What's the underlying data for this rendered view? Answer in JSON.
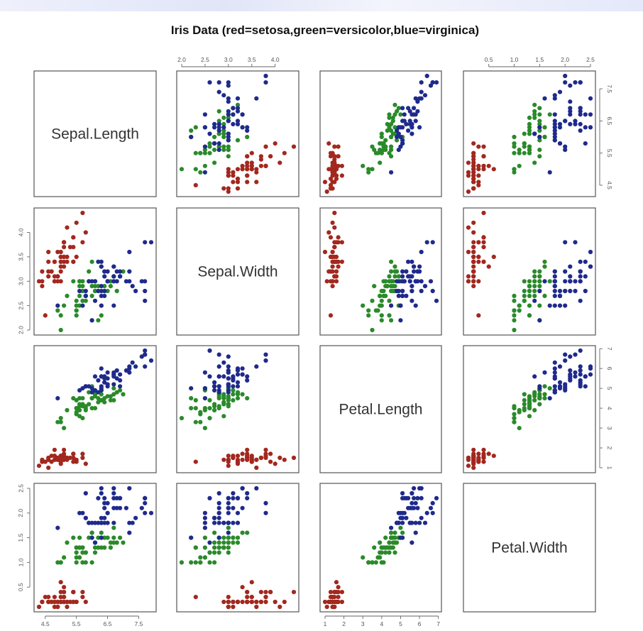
{
  "chart_data": {
    "type": "scatter",
    "title": "Iris Data (red=setosa,green=versicolor,blue=virginica)",
    "variables": [
      "Sepal.Length",
      "Sepal.Width",
      "Petal.Length",
      "Petal.Width"
    ],
    "ranges": {
      "Sepal.Length": [
        4.3,
        7.9
      ],
      "Sepal.Width": [
        2.0,
        4.4
      ],
      "Petal.Length": [
        1.0,
        6.9
      ],
      "Petal.Width": [
        0.1,
        2.5
      ]
    },
    "ticks": {
      "Sepal.Length": [
        "4.5",
        "5.5",
        "6.5",
        "7.5"
      ],
      "Sepal.Width": [
        "2.0",
        "2.5",
        "3.0",
        "3.5",
        "4.0"
      ],
      "Petal.Length": [
        "1",
        "2",
        "3",
        "4",
        "5",
        "6",
        "7"
      ],
      "Petal.Width": [
        "0.5",
        "1.0",
        "1.5",
        "2.0",
        "2.5"
      ]
    },
    "grid": false,
    "legend": "none",
    "series": [
      {
        "species": "setosa",
        "color": "#a2281e",
        "points": [
          [
            5.1,
            3.5,
            1.4,
            0.2
          ],
          [
            4.9,
            3.0,
            1.4,
            0.2
          ],
          [
            4.7,
            3.2,
            1.3,
            0.2
          ],
          [
            4.6,
            3.1,
            1.5,
            0.2
          ],
          [
            5.0,
            3.6,
            1.4,
            0.2
          ],
          [
            5.4,
            3.9,
            1.7,
            0.4
          ],
          [
            4.6,
            3.4,
            1.4,
            0.3
          ],
          [
            5.0,
            3.4,
            1.5,
            0.2
          ],
          [
            4.4,
            2.9,
            1.4,
            0.2
          ],
          [
            4.9,
            3.1,
            1.5,
            0.1
          ],
          [
            5.4,
            3.7,
            1.5,
            0.2
          ],
          [
            4.8,
            3.4,
            1.6,
            0.2
          ],
          [
            4.8,
            3.0,
            1.4,
            0.1
          ],
          [
            4.3,
            3.0,
            1.1,
            0.1
          ],
          [
            5.8,
            4.0,
            1.2,
            0.2
          ],
          [
            5.7,
            4.4,
            1.5,
            0.4
          ],
          [
            5.4,
            3.9,
            1.3,
            0.4
          ],
          [
            5.1,
            3.5,
            1.4,
            0.3
          ],
          [
            5.7,
            3.8,
            1.7,
            0.3
          ],
          [
            5.1,
            3.8,
            1.5,
            0.3
          ],
          [
            5.4,
            3.4,
            1.7,
            0.2
          ],
          [
            5.1,
            3.7,
            1.5,
            0.4
          ],
          [
            4.6,
            3.6,
            1.0,
            0.2
          ],
          [
            5.1,
            3.3,
            1.7,
            0.5
          ],
          [
            4.8,
            3.4,
            1.9,
            0.2
          ],
          [
            5.0,
            3.0,
            1.6,
            0.2
          ],
          [
            5.0,
            3.4,
            1.6,
            0.4
          ],
          [
            5.2,
            3.5,
            1.5,
            0.2
          ],
          [
            5.2,
            3.4,
            1.4,
            0.2
          ],
          [
            4.7,
            3.2,
            1.6,
            0.2
          ],
          [
            4.8,
            3.1,
            1.6,
            0.2
          ],
          [
            5.4,
            3.4,
            1.5,
            0.4
          ],
          [
            5.2,
            4.1,
            1.5,
            0.1
          ],
          [
            5.5,
            4.2,
            1.4,
            0.2
          ],
          [
            4.9,
            3.1,
            1.5,
            0.2
          ],
          [
            5.0,
            3.2,
            1.2,
            0.2
          ],
          [
            5.5,
            3.5,
            1.3,
            0.2
          ],
          [
            4.9,
            3.6,
            1.4,
            0.1
          ],
          [
            4.4,
            3.0,
            1.3,
            0.2
          ],
          [
            5.1,
            3.4,
            1.5,
            0.2
          ],
          [
            5.0,
            3.5,
            1.3,
            0.3
          ],
          [
            4.5,
            2.3,
            1.3,
            0.3
          ],
          [
            4.4,
            3.2,
            1.3,
            0.2
          ],
          [
            5.0,
            3.5,
            1.6,
            0.6
          ],
          [
            5.1,
            3.8,
            1.9,
            0.4
          ],
          [
            4.8,
            3.0,
            1.4,
            0.3
          ],
          [
            5.1,
            3.8,
            1.6,
            0.2
          ],
          [
            4.6,
            3.2,
            1.4,
            0.2
          ],
          [
            5.3,
            3.7,
            1.5,
            0.2
          ],
          [
            5.0,
            3.3,
            1.4,
            0.2
          ]
        ]
      },
      {
        "species": "versicolor",
        "color": "#2a8a2a",
        "points": [
          [
            7.0,
            3.2,
            4.7,
            1.4
          ],
          [
            6.4,
            3.2,
            4.5,
            1.5
          ],
          [
            6.9,
            3.1,
            4.9,
            1.5
          ],
          [
            5.5,
            2.3,
            4.0,
            1.3
          ],
          [
            6.5,
            2.8,
            4.6,
            1.5
          ],
          [
            5.7,
            2.8,
            4.5,
            1.3
          ],
          [
            6.3,
            3.3,
            4.7,
            1.6
          ],
          [
            4.9,
            2.4,
            3.3,
            1.0
          ],
          [
            6.6,
            2.9,
            4.6,
            1.3
          ],
          [
            5.2,
            2.7,
            3.9,
            1.4
          ],
          [
            5.0,
            2.0,
            3.5,
            1.0
          ],
          [
            5.9,
            3.0,
            4.2,
            1.5
          ],
          [
            6.0,
            2.2,
            4.0,
            1.0
          ],
          [
            6.1,
            2.9,
            4.7,
            1.4
          ],
          [
            5.6,
            2.9,
            3.6,
            1.3
          ],
          [
            6.7,
            3.1,
            4.4,
            1.4
          ],
          [
            5.6,
            3.0,
            4.5,
            1.5
          ],
          [
            5.8,
            2.7,
            4.1,
            1.0
          ],
          [
            6.2,
            2.2,
            4.5,
            1.5
          ],
          [
            5.6,
            2.5,
            3.9,
            1.1
          ],
          [
            5.9,
            3.2,
            4.8,
            1.8
          ],
          [
            6.1,
            2.8,
            4.0,
            1.3
          ],
          [
            6.3,
            2.5,
            4.9,
            1.5
          ],
          [
            6.1,
            2.8,
            4.7,
            1.2
          ],
          [
            6.4,
            2.9,
            4.3,
            1.3
          ],
          [
            6.6,
            3.0,
            4.4,
            1.4
          ],
          [
            6.8,
            2.8,
            4.8,
            1.4
          ],
          [
            6.7,
            3.0,
            5.0,
            1.7
          ],
          [
            6.0,
            2.9,
            4.5,
            1.5
          ],
          [
            5.7,
            2.6,
            3.5,
            1.0
          ],
          [
            5.5,
            2.4,
            3.8,
            1.1
          ],
          [
            5.5,
            2.4,
            3.7,
            1.0
          ],
          [
            5.8,
            2.7,
            3.9,
            1.2
          ],
          [
            6.0,
            2.7,
            5.1,
            1.6
          ],
          [
            5.4,
            3.0,
            4.5,
            1.5
          ],
          [
            6.0,
            3.4,
            4.5,
            1.6
          ],
          [
            6.7,
            3.1,
            4.7,
            1.5
          ],
          [
            6.3,
            2.3,
            4.4,
            1.3
          ],
          [
            5.6,
            3.0,
            4.1,
            1.3
          ],
          [
            5.5,
            2.5,
            4.0,
            1.3
          ],
          [
            5.5,
            2.6,
            4.4,
            1.2
          ],
          [
            6.1,
            3.0,
            4.6,
            1.4
          ],
          [
            5.8,
            2.6,
            4.0,
            1.2
          ],
          [
            5.0,
            2.3,
            3.3,
            1.0
          ],
          [
            5.6,
            2.7,
            4.2,
            1.3
          ],
          [
            5.7,
            3.0,
            4.2,
            1.2
          ],
          [
            5.7,
            2.9,
            4.2,
            1.3
          ],
          [
            6.2,
            2.9,
            4.3,
            1.3
          ],
          [
            5.1,
            2.5,
            3.0,
            1.1
          ],
          [
            5.7,
            2.8,
            4.1,
            1.3
          ]
        ]
      },
      {
        "species": "virginica",
        "color": "#1f2a8c",
        "points": [
          [
            6.3,
            3.3,
            6.0,
            2.5
          ],
          [
            5.8,
            2.7,
            5.1,
            1.9
          ],
          [
            7.1,
            3.0,
            5.9,
            2.1
          ],
          [
            6.3,
            2.9,
            5.6,
            1.8
          ],
          [
            6.5,
            3.0,
            5.8,
            2.2
          ],
          [
            7.6,
            3.0,
            6.6,
            2.1
          ],
          [
            4.9,
            2.5,
            4.5,
            1.7
          ],
          [
            7.3,
            2.9,
            6.3,
            1.8
          ],
          [
            6.7,
            2.5,
            5.8,
            1.8
          ],
          [
            7.2,
            3.6,
            6.1,
            2.5
          ],
          [
            6.5,
            3.2,
            5.1,
            2.0
          ],
          [
            6.4,
            2.7,
            5.3,
            1.9
          ],
          [
            6.8,
            3.0,
            5.5,
            2.1
          ],
          [
            5.7,
            2.5,
            5.0,
            2.0
          ],
          [
            5.8,
            2.8,
            5.1,
            2.4
          ],
          [
            6.4,
            3.2,
            5.3,
            2.3
          ],
          [
            6.5,
            3.0,
            5.5,
            1.8
          ],
          [
            7.7,
            3.8,
            6.7,
            2.2
          ],
          [
            7.7,
            2.6,
            6.9,
            2.3
          ],
          [
            6.0,
            2.2,
            5.0,
            1.5
          ],
          [
            6.9,
            3.2,
            5.7,
            2.3
          ],
          [
            5.6,
            2.8,
            4.9,
            2.0
          ],
          [
            7.7,
            2.8,
            6.7,
            2.0
          ],
          [
            6.3,
            2.7,
            4.9,
            1.8
          ],
          [
            6.7,
            3.3,
            5.7,
            2.1
          ],
          [
            7.2,
            3.2,
            6.0,
            1.8
          ],
          [
            6.2,
            2.8,
            4.8,
            1.8
          ],
          [
            6.1,
            3.0,
            4.9,
            1.8
          ],
          [
            6.4,
            2.8,
            5.6,
            2.1
          ],
          [
            7.2,
            3.0,
            5.8,
            1.6
          ],
          [
            7.4,
            2.8,
            6.1,
            1.9
          ],
          [
            7.9,
            3.8,
            6.4,
            2.0
          ],
          [
            6.4,
            2.8,
            5.6,
            2.2
          ],
          [
            6.3,
            2.8,
            5.1,
            1.5
          ],
          [
            6.1,
            2.6,
            5.6,
            1.4
          ],
          [
            7.7,
            3.0,
            6.1,
            2.3
          ],
          [
            6.3,
            3.4,
            5.6,
            2.4
          ],
          [
            6.4,
            3.1,
            5.5,
            1.8
          ],
          [
            6.0,
            3.0,
            4.8,
            1.8
          ],
          [
            6.9,
            3.1,
            5.4,
            2.1
          ],
          [
            6.7,
            3.1,
            5.6,
            2.4
          ],
          [
            6.9,
            3.1,
            5.1,
            2.3
          ],
          [
            5.8,
            2.7,
            5.1,
            1.9
          ],
          [
            6.8,
            3.2,
            5.9,
            2.3
          ],
          [
            6.7,
            3.3,
            5.7,
            2.5
          ],
          [
            6.7,
            3.0,
            5.2,
            2.3
          ],
          [
            6.3,
            2.5,
            5.0,
            1.9
          ],
          [
            6.5,
            3.0,
            5.2,
            2.0
          ],
          [
            6.2,
            3.4,
            5.4,
            2.3
          ],
          [
            5.9,
            3.0,
            5.1,
            1.8
          ]
        ]
      }
    ]
  }
}
